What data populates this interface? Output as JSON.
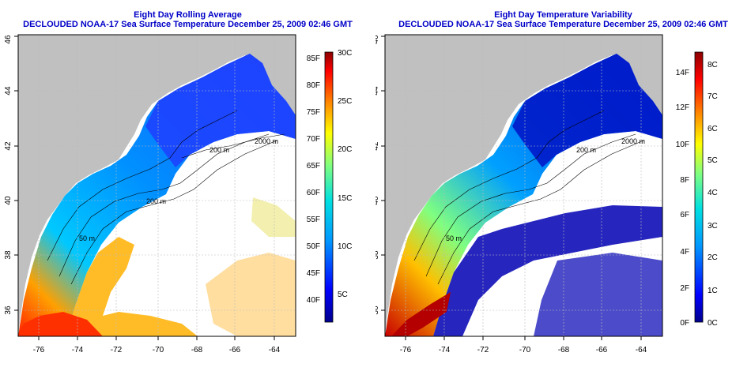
{
  "left": {
    "title1": "Eight Day Rolling Average",
    "title2": "DECLOUDED NOAA-17 Sea Surface Temperature December 25, 2009 02:46 GMT",
    "colorbar_f": [
      "40F",
      "45F",
      "50F",
      "55F",
      "60F",
      "65F",
      "70F",
      "75F",
      "80F",
      "85F"
    ],
    "colorbar_c": [
      "5C",
      "10C",
      "15C",
      "20C",
      "25C",
      "30C"
    ],
    "contours": [
      "2000 m",
      "200 m",
      "200 m",
      "50 m"
    ]
  },
  "right": {
    "title1": "Eight Day Temperature Variability",
    "title2": "DECLOUDED NOAA-17 Sea Surface Temperature December 25, 2009 02:46 GMT",
    "colorbar_f": [
      "0F",
      "2F",
      "4F",
      "6F",
      "8F",
      "10F",
      "12F",
      "14F"
    ],
    "colorbar_c": [
      "0C",
      "1C",
      "2C",
      "3C",
      "4C",
      "5C",
      "6C",
      "7C",
      "8C"
    ],
    "contours": [
      "2000 m",
      "200 m",
      "50 m"
    ]
  },
  "x_ticks": [
    "-76",
    "-74",
    "-72",
    "-70",
    "-68",
    "-66",
    "-64"
  ],
  "y_ticks": [
    "36",
    "38",
    "40",
    "42",
    "44",
    "46"
  ],
  "colors": {
    "land": "#c0c0c0",
    "title": "#0000c8",
    "cold": "#1e3cff",
    "hot": "#c80000"
  }
}
